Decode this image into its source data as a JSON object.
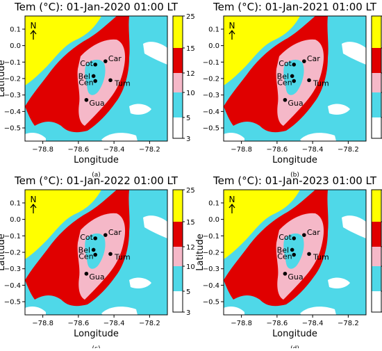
{
  "panels": [
    {
      "id": "a",
      "title": "Tem (°C): 01-Jan-2020 01:00 LT",
      "caption": "(a)",
      "north_label": "N",
      "xlabel": "Longitude",
      "ylabel": "Latitude",
      "xticks": [
        "−78.8",
        "−78.6",
        "−78.4",
        "−78.2"
      ],
      "yticks": [
        "0.1",
        "0.0",
        "−0.1",
        "−0.2",
        "−0.3",
        "−0.4",
        "−0.5"
      ],
      "colorbar_ticks": [
        "25",
        "15",
        "12",
        "10",
        "5",
        "3"
      ],
      "cities": [
        "Cot",
        "Car",
        "Bel",
        "Cen",
        "Tum",
        "Gua"
      ]
    },
    {
      "id": "b",
      "title": "Tem (°C): 01-Jan-2021 01:00 LT",
      "caption": "(b)",
      "north_label": "N",
      "xlabel": "Longitude",
      "ylabel": "",
      "xticks": [
        "−78.8",
        "−78.6",
        "−78.4",
        "−78.2"
      ],
      "yticks": [
        "0.1",
        "0.0",
        "−0.1",
        "−0.2",
        "−0.3",
        "−0.4",
        "−0.5"
      ],
      "colorbar_ticks": [
        "25",
        "15",
        "12",
        "10",
        "5",
        "3"
      ],
      "cities": [
        "Cot",
        "Car",
        "Bel",
        "Cen",
        "Tum",
        "Gua"
      ]
    },
    {
      "id": "c",
      "title": "Tem (°C): 01-Jan-2022 01:00 LT",
      "caption": "(c)",
      "north_label": "N",
      "xlabel": "Longitude",
      "ylabel": "Latitude",
      "xticks": [
        "−78.8",
        "−78.6",
        "−78.4",
        "−78.2"
      ],
      "yticks": [
        "0.1",
        "0.0",
        "−0.1",
        "−0.2",
        "−0.3",
        "−0.4",
        "−0.5"
      ],
      "colorbar_ticks": [
        "25",
        "15",
        "12",
        "10",
        "5",
        "3"
      ],
      "cities": [
        "Cot",
        "Car",
        "Bel",
        "Cen",
        "Tum",
        "Gua"
      ]
    },
    {
      "id": "d",
      "title": "Tem (°C): 01-Jan-2023 01:00 LT",
      "caption": "(d)",
      "north_label": "N",
      "xlabel": "Longitude",
      "ylabel": "Latitude",
      "xticks": [
        "−78.8",
        "−78.6",
        "−78.4",
        "−78.2"
      ],
      "yticks": [
        "0.1",
        "0.0",
        "−0.1",
        "−0.2",
        "−0.3",
        "−0.4",
        "−0.5"
      ],
      "colorbar_ticks": [
        "25",
        "15",
        "12",
        "10",
        "5",
        "3"
      ],
      "cities": [
        "Cot",
        "Car",
        "Bel",
        "Cen",
        "Tum",
        "Gua"
      ]
    }
  ],
  "colors": {
    "above_15": "#ffff00",
    "12_15": "#e00000",
    "10_12": "#f5b8c8",
    "5_10": "#4fd8e8",
    "3_5": "#ffffff",
    "city_marker": "#000000"
  }
}
